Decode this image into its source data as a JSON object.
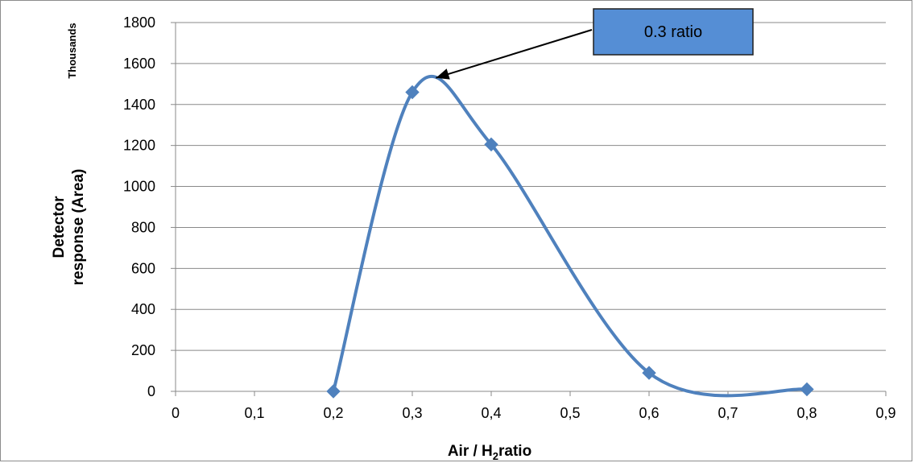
{
  "chart_data": {
    "type": "line",
    "xlabel_main": "Air / H",
    "xlabel_sub": "2",
    "xlabel_tail": "ratio",
    "ylabel_line1": "Detector",
    "ylabel_line2": "response (Area)",
    "y_unit": "Thousands",
    "x_ticks": [
      "0",
      "0,1",
      "0,2",
      "0,3",
      "0,4",
      "0,5",
      "0,6",
      "0,7",
      "0,8",
      "0,9"
    ],
    "xlim": [
      0,
      0.9
    ],
    "ylim": [
      0,
      1800
    ],
    "y_ticks": [
      "0",
      "200",
      "400",
      "600",
      "800",
      "1000",
      "1200",
      "1400",
      "1600",
      "1800"
    ],
    "grid": true,
    "smooth": true,
    "x": [
      0.2,
      0.3,
      0.4,
      0.6,
      0.8
    ],
    "values": [
      0,
      1460,
      1205,
      90,
      10
    ],
    "annotation": {
      "text": "0.3 ratio",
      "points_to_x": 0.33,
      "points_to_y": 1530
    },
    "colors": {
      "series": "#4f81bd",
      "callout_fill": "#558ed5",
      "grid": "#898989"
    }
  }
}
